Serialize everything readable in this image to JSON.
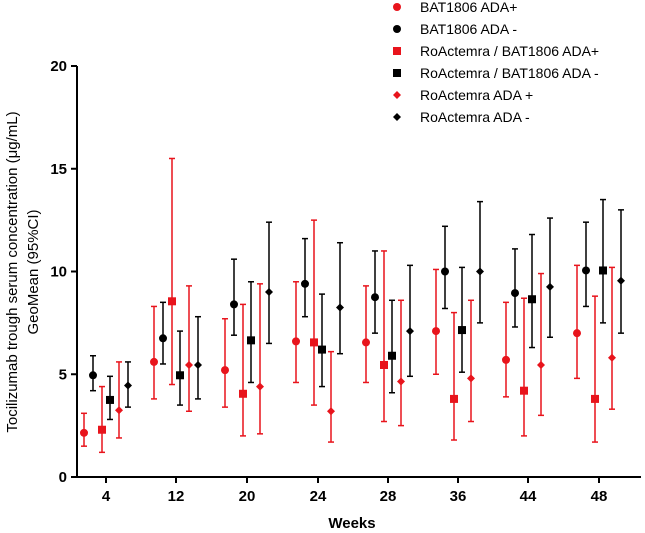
{
  "chart_data": {
    "type": "scatter",
    "title": "",
    "xlabel": "Weeks",
    "ylabel_line1": "Tocilizumab trough serum concentration (μg/mL)",
    "ylabel_line2": "GeoMean  (95%CI)",
    "categories": [
      "4",
      "12",
      "20",
      "24",
      "28",
      "36",
      "44",
      "48"
    ],
    "ylim": [
      0,
      20
    ],
    "yticks": [
      "0",
      "5",
      "10",
      "15",
      "20"
    ],
    "legend_position": "top-right",
    "series": [
      {
        "name": "BAT1806 ADA+",
        "color": "#e8141c",
        "marker": "circle",
        "values": [
          2.15,
          5.6,
          5.2,
          6.6,
          6.55,
          7.1,
          5.7,
          7.0
        ],
        "lower": [
          1.5,
          3.8,
          3.4,
          4.6,
          4.6,
          5.0,
          3.9,
          4.8
        ],
        "upper": [
          3.1,
          8.3,
          7.7,
          9.5,
          9.3,
          10.1,
          8.5,
          10.3
        ]
      },
      {
        "name": "BAT1806 ADA -",
        "color": "#000000",
        "marker": "circle",
        "values": [
          4.95,
          6.75,
          8.4,
          9.4,
          8.75,
          10.0,
          8.95,
          10.05
        ],
        "lower": [
          4.2,
          5.5,
          6.9,
          7.8,
          7.0,
          8.2,
          7.3,
          8.3
        ],
        "upper": [
          5.9,
          8.5,
          10.6,
          11.6,
          11.0,
          12.2,
          11.1,
          12.4
        ]
      },
      {
        "name": "RoActemra / BAT1806 ADA+",
        "color": "#e8141c",
        "marker": "square",
        "values": [
          2.3,
          8.55,
          4.05,
          6.55,
          5.45,
          3.8,
          4.2,
          3.8
        ],
        "lower": [
          1.2,
          4.5,
          2.0,
          3.5,
          2.7,
          1.8,
          2.0,
          1.7
        ],
        "upper": [
          4.4,
          15.5,
          8.4,
          12.5,
          11.0,
          8.0,
          8.7,
          8.8
        ]
      },
      {
        "name": "RoActemra / BAT1806 ADA -",
        "color": "#000000",
        "marker": "square",
        "values": [
          3.75,
          4.95,
          6.65,
          6.2,
          5.9,
          7.15,
          8.65,
          10.05
        ],
        "lower": [
          2.8,
          3.5,
          4.6,
          4.4,
          4.1,
          5.1,
          6.3,
          7.5
        ],
        "upper": [
          4.9,
          7.1,
          9.5,
          8.9,
          8.6,
          10.2,
          11.8,
          13.5
        ]
      },
      {
        "name": "RoActemra ADA +",
        "color": "#e8141c",
        "marker": "diamond",
        "values": [
          3.25,
          5.45,
          4.4,
          3.2,
          4.65,
          4.8,
          5.45,
          5.8
        ],
        "lower": [
          1.9,
          3.2,
          2.1,
          1.7,
          2.5,
          2.7,
          3.0,
          3.3
        ],
        "upper": [
          5.6,
          9.3,
          9.4,
          6.1,
          8.6,
          8.6,
          9.9,
          10.2
        ]
      },
      {
        "name": "RoActemra ADA -",
        "color": "#000000",
        "marker": "diamond",
        "values": [
          4.45,
          5.45,
          9.0,
          8.25,
          7.1,
          10.0,
          9.25,
          9.55
        ],
        "lower": [
          3.4,
          3.8,
          6.5,
          6.0,
          4.9,
          7.5,
          6.8,
          7.0
        ],
        "upper": [
          5.6,
          7.8,
          12.4,
          11.4,
          10.3,
          13.4,
          12.6,
          13.0
        ]
      }
    ]
  }
}
